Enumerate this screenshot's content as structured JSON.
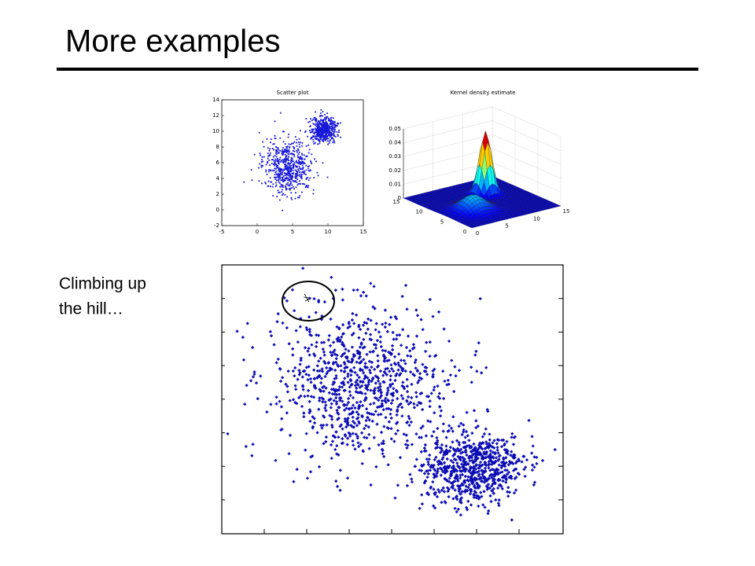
{
  "header": {
    "title": "More examples"
  },
  "scatter_plot": {
    "title": "Scatter plot",
    "xlim": [
      -5,
      15
    ],
    "ylim": [
      -2,
      14
    ],
    "xticks": [
      -5,
      0,
      5,
      10,
      15
    ],
    "yticks": [
      -2,
      0,
      2,
      4,
      6,
      8,
      10,
      12,
      14
    ]
  },
  "kde_plot": {
    "title": "Kernel density estimate",
    "zlim": [
      0,
      0.05
    ],
    "zticks": [
      0,
      0.01,
      0.02,
      0.03,
      0.04,
      0.05
    ],
    "xticks": [
      0,
      5,
      10,
      15
    ],
    "yticks": [
      0,
      5,
      10,
      15
    ]
  },
  "caption": {
    "lines": [
      "Climbing up",
      "the hill…"
    ]
  }
}
